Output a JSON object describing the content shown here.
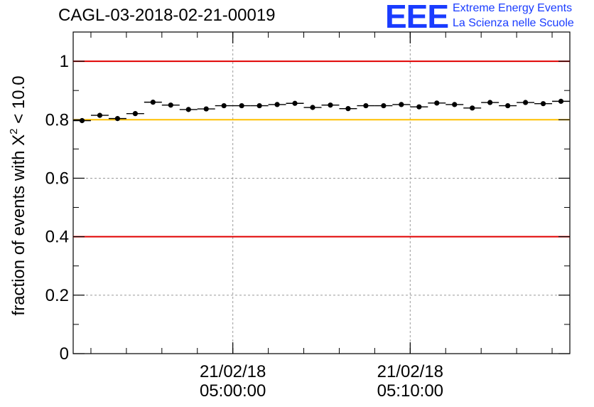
{
  "title": "CAGL-03-2018-02-21-00019",
  "logo": {
    "mark": "EEE",
    "line1": "Extreme Energy Events",
    "line2": "La Scienza nelle Scuole",
    "color": "#1a3cff"
  },
  "chart_data": {
    "type": "scatter",
    "title": "CAGL-03-2018-02-21-00019",
    "xlabel": "",
    "ylabel_prefix": "fraction of events with ",
    "ylabel_symbol": "X",
    "ylabel_superscript": "2",
    "ylabel_suffix": " < 10.0",
    "xlim": [
      "21/02/18 04:51:00",
      "21/02/18 05:19:00"
    ],
    "ylim": [
      0,
      1.1
    ],
    "y_ticks": [
      0,
      0.2,
      0.4,
      0.6,
      0.8,
      1
    ],
    "y_tick_labels": [
      "0",
      "0.2",
      "0.4",
      "0.6",
      "0.8",
      "1"
    ],
    "x_tick_labels": [
      {
        "time": "05:00:00",
        "date": "21/02/18"
      },
      {
        "time": "05:10:00",
        "date": "21/02/18"
      }
    ],
    "grid": true,
    "error_bar_half_width_minutes": 0.5,
    "reference_lines": [
      {
        "y": 1.0,
        "color": "#e00000"
      },
      {
        "y": 0.8,
        "color": "#ffc000"
      },
      {
        "y": 0.4,
        "color": "#e00000"
      }
    ],
    "series": [
      {
        "marker": "filled-circle",
        "color": "#000000",
        "x": [
          "04:51:30",
          "04:52:30",
          "04:53:30",
          "04:54:30",
          "04:55:30",
          "04:56:30",
          "04:57:30",
          "04:58:30",
          "04:59:30",
          "05:00:30",
          "05:01:30",
          "05:02:30",
          "05:03:30",
          "05:04:30",
          "05:05:30",
          "05:06:30",
          "05:07:30",
          "05:08:30",
          "05:09:30",
          "05:10:30",
          "05:11:30",
          "05:12:30",
          "05:13:30",
          "05:14:30",
          "05:15:30",
          "05:16:30",
          "05:17:30",
          "05:18:30"
        ],
        "y": [
          0.797,
          0.815,
          0.804,
          0.821,
          0.86,
          0.85,
          0.835,
          0.837,
          0.848,
          0.848,
          0.848,
          0.852,
          0.856,
          0.842,
          0.85,
          0.838,
          0.848,
          0.848,
          0.852,
          0.844,
          0.857,
          0.852,
          0.84,
          0.859,
          0.848,
          0.859,
          0.855,
          0.863
        ]
      }
    ]
  }
}
